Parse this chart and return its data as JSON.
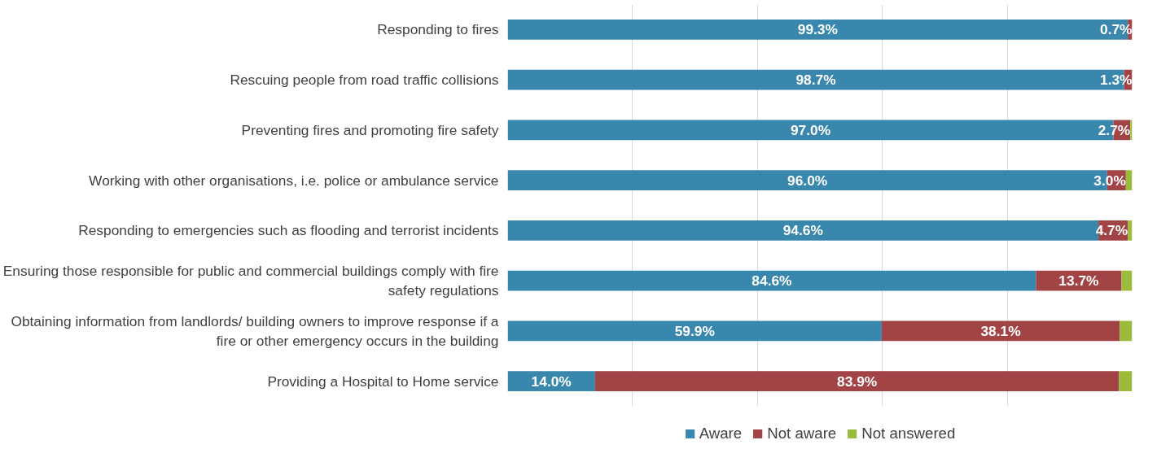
{
  "chart_data": {
    "type": "bar",
    "orientation": "horizontal",
    "stacked": true,
    "categories": [
      "Responding to fires",
      "Rescuing people from road traffic collisions",
      "Preventing fires and promoting fire safety",
      "Working with other organisations, i.e. police or ambulance service",
      "Responding to emergencies such as flooding and terrorist incidents",
      "Ensuring those responsible for public and commercial buildings comply with fire safety regulations",
      "Obtaining information from landlords/ building owners to improve response if a fire or other emergency occurs in the building",
      "Providing a Hospital to Home service"
    ],
    "series": [
      {
        "name": "Aware",
        "color": "#3a87ae",
        "values": [
          99.3,
          98.7,
          97.0,
          96.0,
          94.6,
          84.6,
          59.9,
          14.0
        ],
        "value_labels": [
          "99.3%",
          "98.7%",
          "97.0%",
          "96.0%",
          "94.6%",
          "84.6%",
          "59.9%",
          "14.0%"
        ]
      },
      {
        "name": "Not aware",
        "color": "#a24446",
        "values": [
          0.7,
          1.3,
          2.7,
          3.0,
          4.7,
          13.7,
          38.1,
          83.9
        ],
        "value_labels": [
          "0.7%",
          "1.3%",
          "2.7%",
          "3.0%",
          "4.7%",
          "13.7%",
          "38.1%",
          "83.9%"
        ]
      },
      {
        "name": "Not answered",
        "color": "#9bbb3b",
        "values": [
          0.0,
          0.0,
          0.3,
          1.0,
          0.7,
          1.7,
          2.0,
          2.1
        ],
        "value_labels": [
          null,
          null,
          null,
          null,
          null,
          null,
          null,
          null
        ]
      }
    ],
    "tick_labels": "y",
    "grid": "x",
    "legend": "bottom"
  }
}
